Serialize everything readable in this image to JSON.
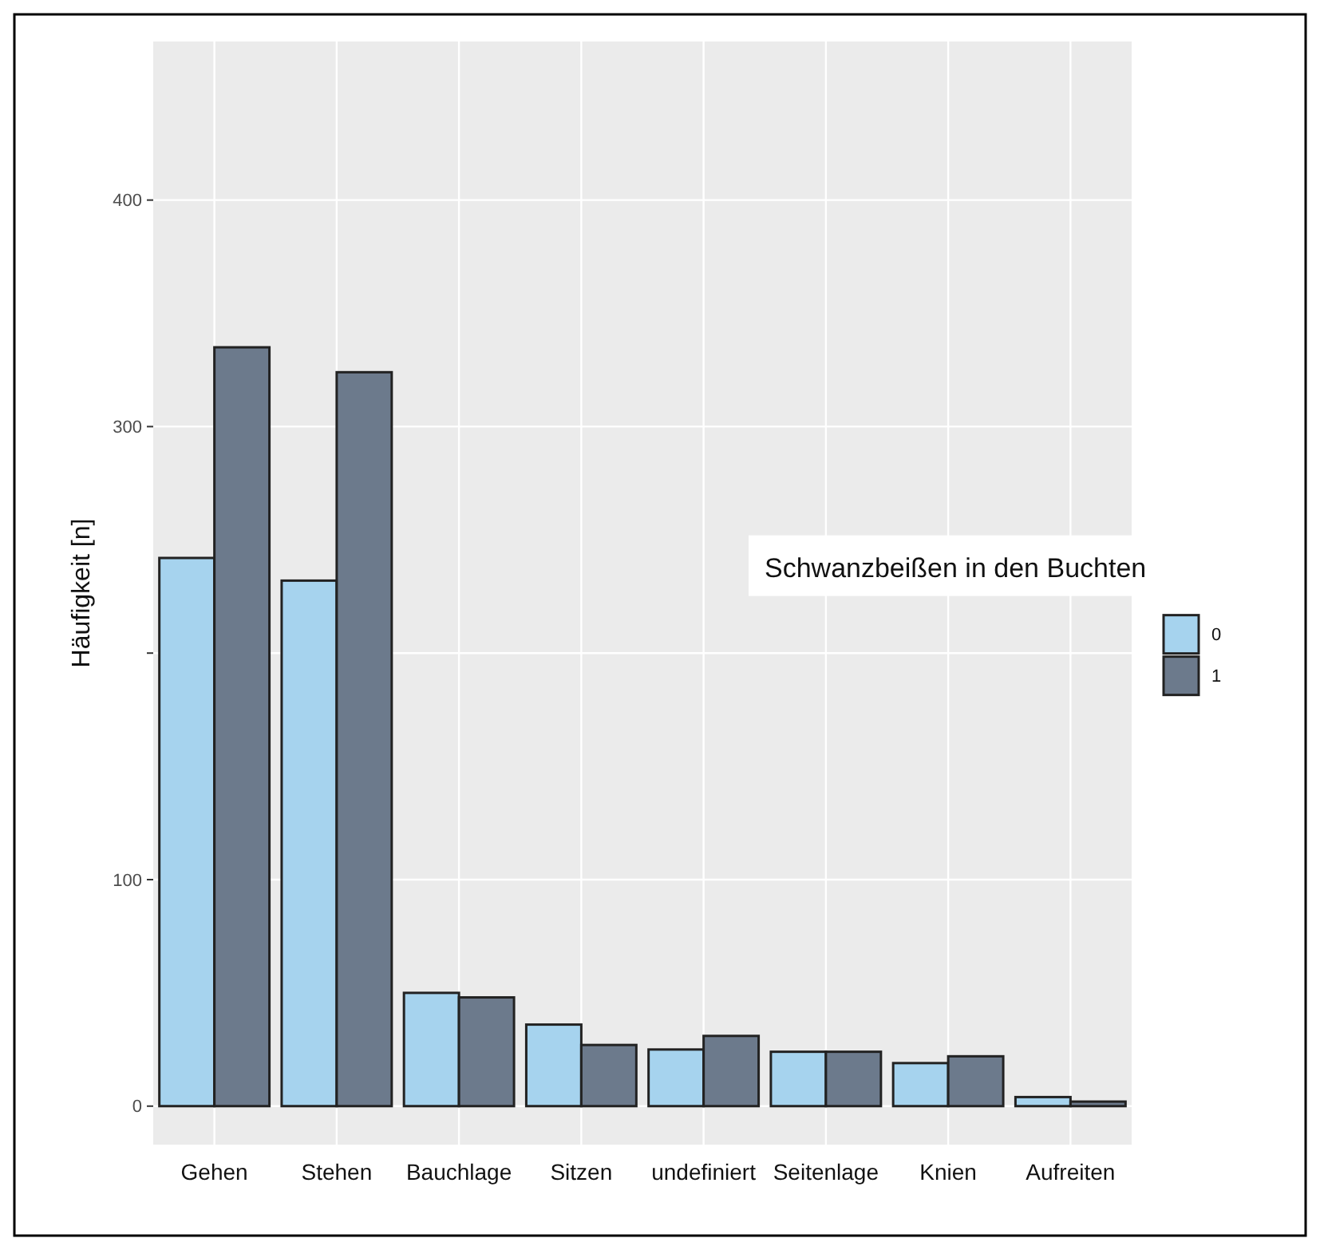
{
  "chart_data": {
    "type": "bar",
    "ylabel": "Häufigkeit [n]",
    "legend_title": "Schwanzbeißen in den Buchten",
    "legend": "right",
    "categories": [
      "Gehen",
      "Stehen",
      "Bauchlage",
      "Sitzen",
      "undefiniert",
      "Seitenlage",
      "Knien",
      "Aufreiten"
    ],
    "series": [
      {
        "name": "0",
        "color": "#a6d3ee",
        "values": [
          242,
          232,
          50,
          36,
          25,
          24,
          19,
          4
        ]
      },
      {
        "name": "1",
        "color": "#6c7a8c",
        "values": [
          335,
          324,
          48,
          27,
          31,
          24,
          22,
          2
        ]
      }
    ],
    "ylim": [
      -17,
      470
    ],
    "yticks": [
      0,
      100,
      {
        "value": 200,
        "label": null
      },
      300,
      400
    ],
    "grid": true
  }
}
